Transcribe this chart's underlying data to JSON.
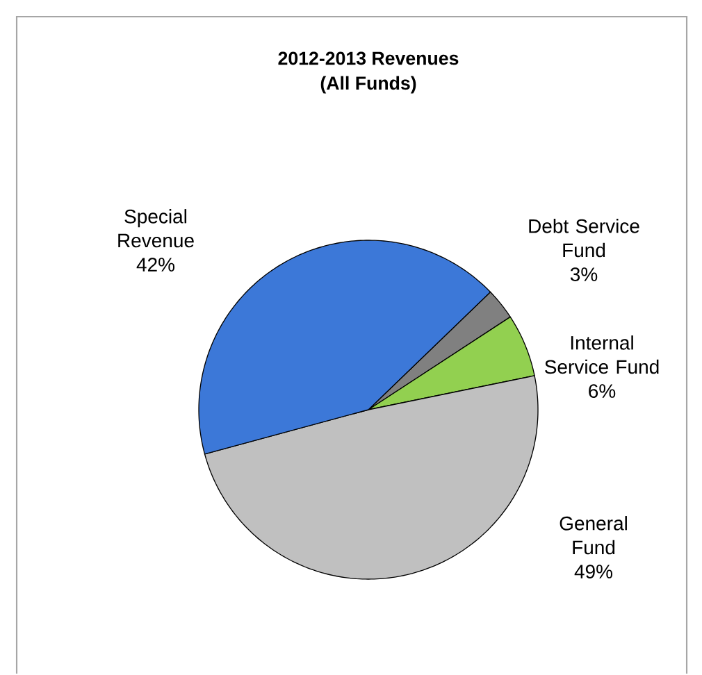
{
  "chart_data": {
    "type": "pie",
    "title": "2012-2013  Revenues",
    "subtitle": "(All Funds)",
    "categories": [
      "Debt Service Fund",
      "Internal Service Fund",
      "General Fund",
      "Special Revenue"
    ],
    "values": [
      3,
      6,
      49,
      42
    ],
    "value_labels": [
      "3%",
      "6%",
      "49%",
      "42%"
    ],
    "colors": [
      "#808080",
      "#92d050",
      "#c0c0c0",
      "#3c78d8"
    ]
  }
}
